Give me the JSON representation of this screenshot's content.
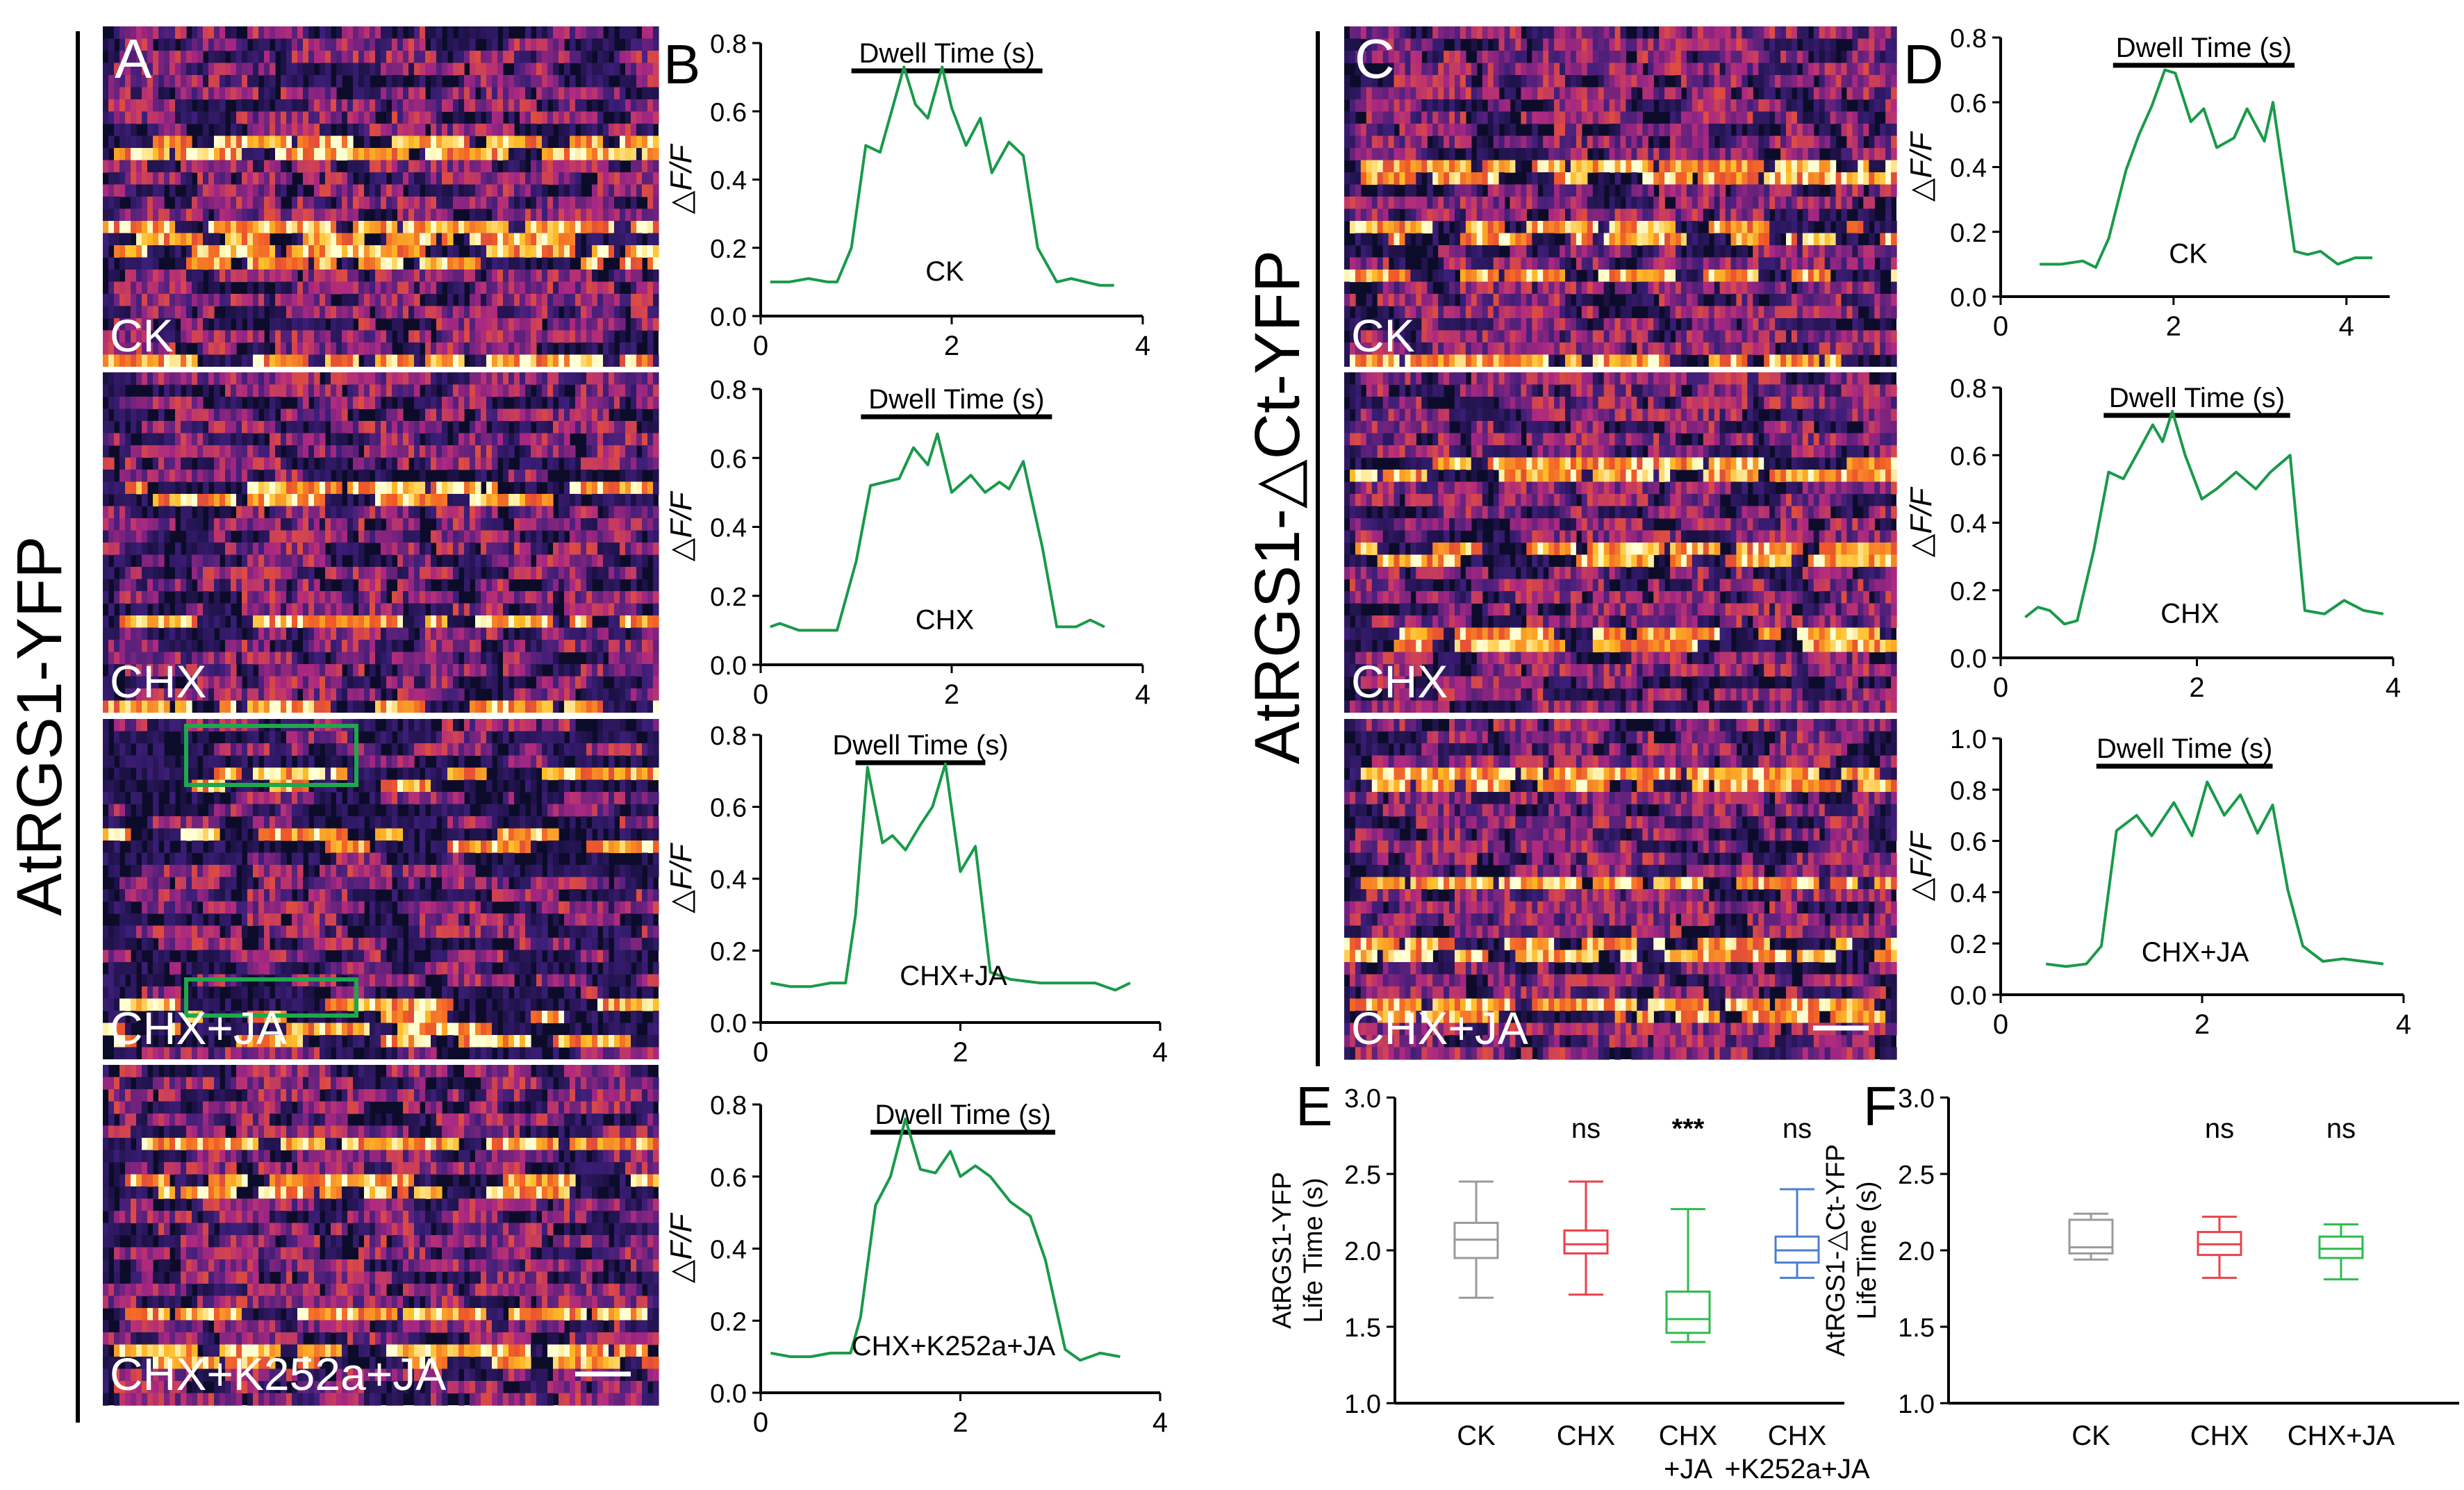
{
  "figure": {
    "left_group_label": "AtRGS1-YFP",
    "right_group_label": "AtRGS1-△Ct-YFP",
    "panel_letters": [
      "A",
      "B",
      "C",
      "D",
      "E",
      "F"
    ],
    "colors": {
      "trace": "#1a9a4a",
      "box": "#1ea84b"
    }
  },
  "kymographs": {
    "A": [
      {
        "label": "CK",
        "seed": 11,
        "density": 0.55,
        "rows": [
          5,
          9,
          10,
          15
        ]
      },
      {
        "label": "CHX",
        "seed": 23,
        "density": 0.45,
        "rows": [
          5,
          11,
          15
        ]
      },
      {
        "label": "CHX+JA",
        "seed": 37,
        "density": 0.22,
        "rows": [
          2,
          5,
          13,
          14
        ],
        "boxes": 2
      },
      {
        "label": "CHX+K252a+JA",
        "seed": 41,
        "density": 0.5,
        "rows": [
          3,
          5,
          11,
          13
        ]
      }
    ],
    "C": [
      {
        "label": "CK",
        "seed": 53,
        "density": 0.6,
        "rows": [
          6,
          9,
          11,
          15
        ]
      },
      {
        "label": "CHX",
        "seed": 67,
        "density": 0.55,
        "rows": [
          4,
          8,
          12
        ]
      },
      {
        "label": "CHX+JA",
        "seed": 79,
        "density": 0.6,
        "rows": [
          2,
          7,
          10,
          13
        ]
      }
    ]
  },
  "chart_data": [
    {
      "panel": "B",
      "type": "line",
      "title": "Dwell Time (s)",
      "annotation": "CK",
      "ylabel": "△F/F",
      "xlim": [
        0,
        4
      ],
      "ylim": [
        0,
        0.8
      ],
      "xticks": [
        "0",
        "2",
        "4"
      ],
      "yticks": [
        "0.0",
        "0.2",
        "0.4",
        "0.6",
        "0.8"
      ],
      "bar_x": [
        0.95,
        2.95
      ],
      "x": [
        0.1,
        0.3,
        0.5,
        0.7,
        0.8,
        0.95,
        1.1,
        1.25,
        1.5,
        1.62,
        1.75,
        1.9,
        2.0,
        2.15,
        2.3,
        2.42,
        2.6,
        2.75,
        2.9,
        3.1,
        3.25,
        3.55,
        3.7
      ],
      "y": [
        0.1,
        0.1,
        0.11,
        0.1,
        0.1,
        0.2,
        0.5,
        0.48,
        0.73,
        0.62,
        0.58,
        0.73,
        0.61,
        0.5,
        0.58,
        0.42,
        0.51,
        0.47,
        0.2,
        0.1,
        0.11,
        0.09,
        0.09
      ]
    },
    {
      "panel": "B",
      "type": "line",
      "title": "Dwell Time (s)",
      "annotation": "CHX",
      "ylabel": "△F/F",
      "xlim": [
        0,
        4
      ],
      "ylim": [
        0,
        0.8
      ],
      "xticks": [
        "0",
        "2",
        "4"
      ],
      "yticks": [
        "0.0",
        "0.2",
        "0.4",
        "0.6",
        "0.8"
      ],
      "bar_x": [
        1.05,
        3.05
      ],
      "x": [
        0.1,
        0.2,
        0.4,
        0.6,
        0.8,
        1.0,
        1.15,
        1.3,
        1.45,
        1.6,
        1.75,
        1.85,
        2.0,
        2.2,
        2.35,
        2.5,
        2.6,
        2.75,
        2.95,
        3.1,
        3.3,
        3.45,
        3.6
      ],
      "y": [
        0.11,
        0.12,
        0.1,
        0.1,
        0.1,
        0.3,
        0.52,
        0.53,
        0.54,
        0.63,
        0.58,
        0.67,
        0.5,
        0.55,
        0.5,
        0.53,
        0.51,
        0.59,
        0.34,
        0.11,
        0.11,
        0.13,
        0.11
      ]
    },
    {
      "panel": "B",
      "type": "line",
      "title": "Dwell Time (s)",
      "annotation": "CHX+JA",
      "ylabel": "△F/F",
      "xlim": [
        0,
        4
      ],
      "ylim": [
        0,
        0.8
      ],
      "xticks": [
        "0",
        "2",
        "4"
      ],
      "yticks": [
        "0.0",
        "0.2",
        "0.4",
        "0.6",
        "0.8"
      ],
      "bar_x": [
        0.95,
        2.25
      ],
      "x": [
        0.1,
        0.3,
        0.5,
        0.7,
        0.85,
        0.95,
        1.07,
        1.22,
        1.32,
        1.45,
        1.6,
        1.72,
        1.85,
        2.0,
        2.15,
        2.3,
        2.5,
        2.8,
        3.1,
        3.35,
        3.55,
        3.7
      ],
      "y": [
        0.11,
        0.1,
        0.1,
        0.11,
        0.11,
        0.3,
        0.71,
        0.5,
        0.52,
        0.48,
        0.55,
        0.6,
        0.72,
        0.42,
        0.49,
        0.14,
        0.12,
        0.11,
        0.11,
        0.11,
        0.09,
        0.11
      ]
    },
    {
      "panel": "B",
      "type": "line",
      "title": "Dwell Time (s)",
      "annotation": "CHX+K252a+JA",
      "ylabel": "△F/F",
      "xlim": [
        0,
        4
      ],
      "ylim": [
        0,
        0.8
      ],
      "xticks": [
        "0",
        "2",
        "4"
      ],
      "yticks": [
        "0.0",
        "0.2",
        "0.4",
        "0.6",
        "0.8"
      ],
      "bar_x": [
        1.1,
        2.95
      ],
      "x": [
        0.1,
        0.3,
        0.5,
        0.7,
        0.9,
        1.0,
        1.15,
        1.3,
        1.45,
        1.6,
        1.75,
        1.9,
        2.0,
        2.15,
        2.3,
        2.5,
        2.7,
        2.85,
        3.05,
        3.2,
        3.4,
        3.6
      ],
      "y": [
        0.11,
        0.1,
        0.1,
        0.11,
        0.11,
        0.21,
        0.52,
        0.6,
        0.76,
        0.62,
        0.61,
        0.67,
        0.6,
        0.63,
        0.6,
        0.53,
        0.49,
        0.37,
        0.12,
        0.09,
        0.11,
        0.1
      ]
    },
    {
      "panel": "D",
      "type": "line",
      "title": "Dwell Time (s)",
      "annotation": "CK",
      "ylabel": "△F/F",
      "xlim": [
        0,
        4.5
      ],
      "ylim": [
        0,
        0.8
      ],
      "xticks": [
        "0",
        "2",
        "4"
      ],
      "yticks": [
        "0.0",
        "0.2",
        "0.4",
        "0.6",
        "0.8"
      ],
      "bar_x": [
        1.3,
        3.4
      ],
      "x": [
        0.45,
        0.7,
        0.95,
        1.1,
        1.25,
        1.45,
        1.6,
        1.75,
        1.9,
        2.02,
        2.2,
        2.35,
        2.5,
        2.7,
        2.85,
        3.05,
        3.15,
        3.4,
        3.55,
        3.7,
        3.9,
        4.1,
        4.3
      ],
      "y": [
        0.1,
        0.1,
        0.11,
        0.09,
        0.18,
        0.39,
        0.5,
        0.59,
        0.7,
        0.69,
        0.54,
        0.58,
        0.46,
        0.49,
        0.58,
        0.48,
        0.6,
        0.14,
        0.13,
        0.14,
        0.1,
        0.12,
        0.12
      ]
    },
    {
      "panel": "D",
      "type": "line",
      "title": "Dwell Time (s)",
      "annotation": "CHX",
      "ylabel": "△F/F",
      "xlim": [
        0,
        4
      ],
      "ylim": [
        0,
        0.8
      ],
      "xticks": [
        "0",
        "2",
        "4"
      ],
      "yticks": [
        "0.0",
        "0.2",
        "0.4",
        "0.6",
        "0.8"
      ],
      "bar_x": [
        1.05,
        2.95
      ],
      "x": [
        0.25,
        0.38,
        0.5,
        0.65,
        0.78,
        0.95,
        1.1,
        1.25,
        1.42,
        1.55,
        1.65,
        1.75,
        1.88,
        2.05,
        2.2,
        2.4,
        2.6,
        2.75,
        2.95,
        3.1,
        3.3,
        3.5,
        3.7,
        3.9
      ],
      "y": [
        0.12,
        0.15,
        0.14,
        0.1,
        0.11,
        0.32,
        0.55,
        0.53,
        0.62,
        0.69,
        0.64,
        0.73,
        0.6,
        0.47,
        0.5,
        0.55,
        0.5,
        0.55,
        0.6,
        0.14,
        0.13,
        0.17,
        0.14,
        0.13
      ]
    },
    {
      "panel": "D",
      "type": "line",
      "title": "Dwell Time (s)",
      "annotation": "CHX+JA",
      "ylabel": "△F/F",
      "xlim": [
        0,
        4
      ],
      "ylim": [
        0,
        1.0
      ],
      "xticks": [
        "0",
        "2",
        "4"
      ],
      "yticks": [
        "0.0",
        "0.2",
        "0.4",
        "0.6",
        "0.8",
        "1.0"
      ],
      "bar_x": [
        0.95,
        2.7
      ],
      "x": [
        0.45,
        0.65,
        0.85,
        1.0,
        1.15,
        1.35,
        1.5,
        1.72,
        1.9,
        2.05,
        2.22,
        2.38,
        2.55,
        2.7,
        2.85,
        3.0,
        3.2,
        3.4,
        3.6,
        3.8
      ],
      "y": [
        0.12,
        0.11,
        0.12,
        0.19,
        0.64,
        0.7,
        0.62,
        0.75,
        0.62,
        0.83,
        0.7,
        0.78,
        0.63,
        0.74,
        0.41,
        0.19,
        0.13,
        0.14,
        0.13,
        0.12
      ]
    },
    {
      "panel": "E",
      "type": "box",
      "ylabel": [
        "AtRGS1-YFP",
        "Life Time (s)"
      ],
      "ylim": [
        1.0,
        3.0
      ],
      "yticks": [
        "1.0",
        "1.5",
        "2.0",
        "2.5",
        "3.0"
      ],
      "categories": [
        "CK",
        "CHX",
        "CHX\n+JA",
        "CHX\n+K252a+JA"
      ],
      "significance": [
        "",
        "ns",
        "***",
        "ns"
      ],
      "colors": [
        "#9a9a9a",
        "#e8424a",
        "#2dbb4b",
        "#4a7fd0"
      ],
      "boxes": [
        {
          "min": 1.69,
          "q1": 1.95,
          "median": 2.07,
          "q3": 2.18,
          "max": 2.45
        },
        {
          "min": 1.71,
          "q1": 1.98,
          "median": 2.04,
          "q3": 2.13,
          "max": 2.45
        },
        {
          "min": 1.4,
          "q1": 1.46,
          "median": 1.55,
          "q3": 1.73,
          "max": 2.27
        },
        {
          "min": 1.82,
          "q1": 1.92,
          "median": 2.0,
          "q3": 2.09,
          "max": 2.4
        }
      ]
    },
    {
      "panel": "F",
      "type": "box",
      "ylabel": [
        "AtRGS1-△Ct-YFP",
        "LifeTime (s)"
      ],
      "ylim": [
        1.0,
        3.0
      ],
      "yticks": [
        "1.0",
        "1.5",
        "2.0",
        "2.5",
        "3.0"
      ],
      "categories": [
        "CK",
        "CHX",
        "CHX+JA"
      ],
      "significance": [
        "",
        "ns",
        "ns"
      ],
      "colors": [
        "#9a9a9a",
        "#e8424a",
        "#2dbb4b"
      ],
      "boxes": [
        {
          "min": 1.94,
          "q1": 1.98,
          "median": 2.02,
          "q3": 2.2,
          "max": 2.24
        },
        {
          "min": 1.82,
          "q1": 1.97,
          "median": 2.04,
          "q3": 2.12,
          "max": 2.22
        },
        {
          "min": 1.81,
          "q1": 1.95,
          "median": 2.01,
          "q3": 2.09,
          "max": 2.17
        }
      ]
    }
  ]
}
